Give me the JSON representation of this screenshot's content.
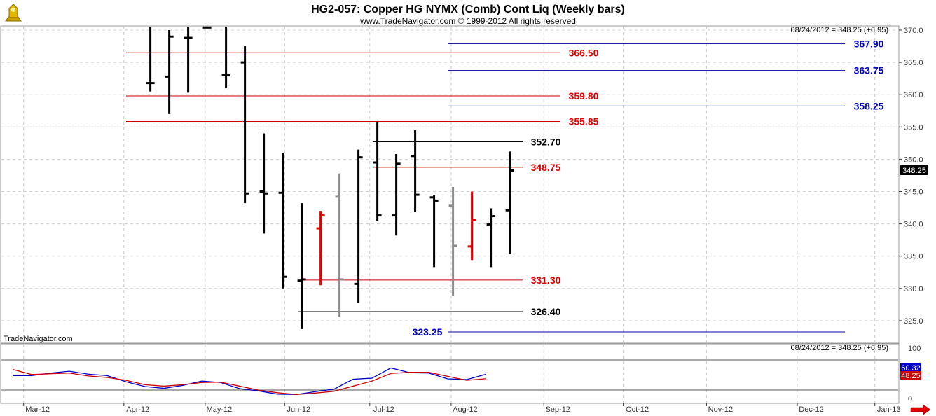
{
  "header": {
    "title": "HG2-057:  Copper HG NYMX (Comb) Cont Liq  (Weekly bars)",
    "copyright": "www.TradeNavigator.com © 1999-2012 All rights reserved"
  },
  "price_panel": {
    "status": "08/24/2012 = 348.25 (+6.95)",
    "watermark": "TradeNavigator.com",
    "last_value": "348.25"
  },
  "indicator_panel": {
    "status": "08/24/2012 = 348.25 (+6.95)",
    "blue_value": "60.32",
    "red_value": "48.25"
  },
  "colors": {
    "up": "#000000",
    "down_red": "#e00000",
    "gray": "#8a8a8a",
    "red_level": "#cc0000",
    "blue_level": "#0000aa",
    "black_level": "#000000",
    "stoch_k": "#0000cc",
    "stoch_d": "#cc0000"
  },
  "chart_data": [
    {
      "type": "ohlc",
      "title": "HG2-057:  Copper HG NYMX (Comb) Cont Liq  (Weekly bars)",
      "x_tick_labels": [
        "Mar-12",
        "Apr-12",
        "May-12",
        "Jun-12",
        "Jul-12",
        "Aug-12",
        "Sep-12",
        "Oct-12",
        "Nov-12",
        "Dec-12",
        "Jan-13"
      ],
      "y_ticks": [
        325.0,
        330.0,
        335.0,
        340.0,
        345.0,
        350.0,
        355.0,
        360.0,
        365.0,
        370.0
      ],
      "ylim": [
        322.0,
        370.5
      ],
      "bars": [
        {
          "week": 7,
          "high": 371.0,
          "low": 360.5,
          "open": 361.8,
          "close": 361.8,
          "color": "black"
        },
        {
          "week": 8,
          "high": 370.0,
          "low": 357.0,
          "open": 362.8,
          "close": 369.0,
          "color": "black"
        },
        {
          "week": 9,
          "high": 371.0,
          "low": 360.3,
          "open": 368.8,
          "close": 368.8,
          "color": "black"
        },
        {
          "week": 10,
          "high": 370.5,
          "low": 370.3,
          "open": 370.4,
          "close": 370.4,
          "color": "black"
        },
        {
          "week": 11,
          "high": 371.0,
          "low": 361.0,
          "open": 363.0,
          "close": 363.0,
          "color": "black"
        },
        {
          "week": 12,
          "high": 367.5,
          "low": 343.2,
          "open": 365.0,
          "close": 344.7,
          "color": "black"
        },
        {
          "week": 13,
          "high": 354.0,
          "low": 338.5,
          "open": 345.0,
          "close": 344.7,
          "color": "black"
        },
        {
          "week": 14,
          "high": 351.0,
          "low": 330.0,
          "open": 344.8,
          "close": 331.8,
          "color": "black"
        },
        {
          "week": 15,
          "high": 343.2,
          "low": 323.7,
          "open": 331.2,
          "close": 331.4,
          "color": "black"
        },
        {
          "week": 16,
          "high": 342.0,
          "low": 330.5,
          "open": 339.3,
          "close": 341.3,
          "color": "red"
        },
        {
          "week": 17,
          "high": 347.8,
          "low": 325.6,
          "open": 344.2,
          "close": 331.4,
          "color": "gray"
        },
        {
          "week": 18,
          "high": 351.5,
          "low": 327.8,
          "open": 330.7,
          "close": 350.3,
          "color": "black"
        },
        {
          "week": 19,
          "high": 355.8,
          "low": 340.5,
          "open": 349.5,
          "close": 341.3,
          "color": "black"
        },
        {
          "week": 20,
          "high": 350.8,
          "low": 338.2,
          "open": 341.3,
          "close": 349.3,
          "color": "black"
        },
        {
          "week": 21,
          "high": 354.5,
          "low": 341.8,
          "open": 350.5,
          "close": 344.5,
          "color": "black"
        },
        {
          "week": 22,
          "high": 344.5,
          "low": 333.3,
          "open": 344.1,
          "close": 343.6,
          "color": "black"
        },
        {
          "week": 23,
          "high": 345.7,
          "low": 328.8,
          "open": 342.8,
          "close": 336.6,
          "color": "gray"
        },
        {
          "week": 24,
          "high": 345.0,
          "low": 334.4,
          "open": 336.5,
          "close": 340.6,
          "color": "red"
        },
        {
          "week": 25,
          "high": 342.4,
          "low": 333.3,
          "open": 339.9,
          "close": 341.2,
          "color": "black"
        },
        {
          "week": 26,
          "high": 351.2,
          "low": 335.3,
          "open": 342.1,
          "close": 348.25,
          "color": "black"
        }
      ],
      "levels": [
        {
          "value": 367.9,
          "label": "367.90",
          "color": "blue"
        },
        {
          "value": 366.5,
          "label": "366.50",
          "color": "red"
        },
        {
          "value": 363.75,
          "label": "363.75",
          "color": "blue"
        },
        {
          "value": 359.8,
          "label": "359.80",
          "color": "red"
        },
        {
          "value": 358.25,
          "label": "358.25",
          "color": "blue"
        },
        {
          "value": 355.85,
          "label": "355.85",
          "color": "red"
        },
        {
          "value": 352.7,
          "label": "352.70",
          "color": "black"
        },
        {
          "value": 348.75,
          "label": "348.75",
          "color": "red"
        },
        {
          "value": 331.3,
          "label": "331.30",
          "color": "red"
        },
        {
          "value": 326.4,
          "label": "326.40",
          "color": "black"
        },
        {
          "value": 323.25,
          "label": "323.25",
          "color": "blue"
        }
      ],
      "grid": true
    },
    {
      "type": "line",
      "ylim": [
        0,
        100
      ],
      "y_ticks": [
        0,
        50,
        100
      ],
      "series": [
        {
          "color": "blue",
          "x": [
            1,
            2,
            3,
            4,
            5,
            6,
            7,
            8,
            9,
            10,
            11,
            12,
            13,
            14,
            15,
            16,
            17,
            18,
            19,
            20,
            21,
            22,
            23,
            24,
            25,
            26
          ],
          "values": [
            57,
            57,
            64,
            69,
            61,
            57,
            40,
            27,
            22,
            30,
            42,
            38,
            21,
            15,
            6,
            5,
            13,
            20,
            47,
            50,
            78,
            65,
            64,
            48,
            46,
            60.32
          ]
        },
        {
          "color": "red",
          "x": [
            1,
            2,
            3,
            4,
            5,
            6,
            7,
            8,
            9,
            10,
            11,
            12,
            13,
            14,
            15,
            16,
            17,
            18,
            19,
            20,
            21,
            22,
            23,
            24,
            25,
            26
          ],
          "values": [
            74,
            60,
            62,
            64,
            56,
            52,
            44,
            32,
            28,
            32,
            38,
            39,
            28,
            17,
            10,
            5,
            9,
            14,
            28,
            42,
            63,
            66,
            66,
            55,
            44,
            48.25
          ]
        }
      ]
    }
  ]
}
